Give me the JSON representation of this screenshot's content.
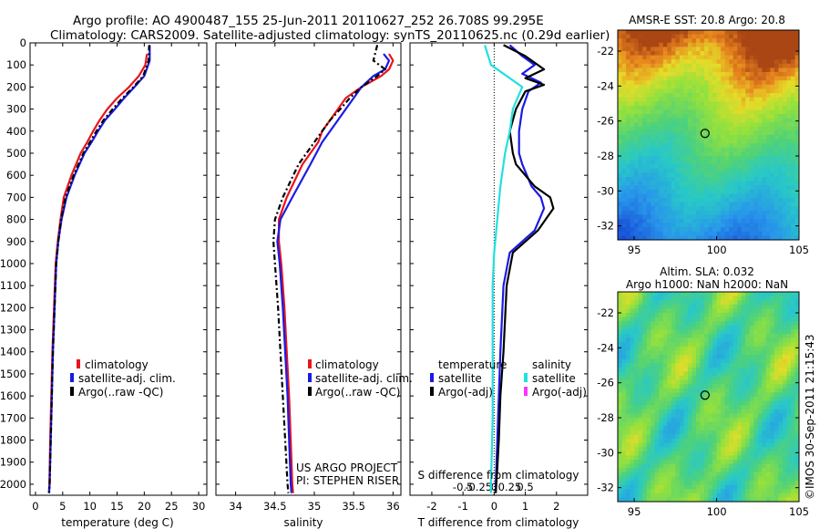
{
  "header": {
    "line1": "Argo profile: AO 4900487_155 25-Jun-2011 20110627_252 26.708S 99.295E",
    "line2": "Climatology: CARS2009. Satellite-adjusted climatology: synTS_20110625.nc (0.29d earlier)"
  },
  "credit": "©IMOS 30-Sep-2011 21:15:43",
  "project": {
    "line1": "US ARGO PROJECT",
    "line2": "PI: STEPHEN RISER"
  },
  "colors": {
    "climatology": "#e8141c",
    "satellite": "#1a1ae6",
    "argo": "#000000",
    "sal_sat": "#22e0e0",
    "sal_argo": "#ff33ff"
  },
  "chart_data": [
    {
      "type": "line",
      "xlabel": "temperature (deg C)",
      "xlim": [
        -1,
        31.5
      ],
      "xticks": [
        0,
        5,
        10,
        15,
        20,
        25,
        30
      ],
      "ylim": [
        2050,
        0
      ],
      "yticks": [
        0,
        100,
        200,
        300,
        400,
        500,
        600,
        700,
        800,
        900,
        1000,
        1100,
        1200,
        1300,
        1400,
        1500,
        1600,
        1700,
        1800,
        1900,
        2000
      ],
      "legend_location": "lower-center",
      "legend": [
        "climatology",
        "satellite-adj. clim.",
        "Argo(..raw -QC)"
      ],
      "series": [
        {
          "name": "climatology",
          "color": "climatology",
          "style": "solid",
          "x": [
            20.5,
            20.2,
            19.0,
            17.2,
            15.0,
            13.2,
            11.8,
            10.6,
            9.5,
            8.3,
            6.6,
            5.2,
            4.6,
            4.1,
            3.7,
            3.4,
            3.1,
            2.9,
            2.7,
            2.55,
            2.45
          ],
          "y": [
            50,
            100,
            150,
            200,
            250,
            300,
            350,
            400,
            450,
            500,
            600,
            700,
            800,
            900,
            1000,
            1200,
            1400,
            1600,
            1800,
            2000,
            2040
          ]
        },
        {
          "name": "satellite-adj. clim.",
          "color": "satellite",
          "style": "solid",
          "x": [
            21.0,
            21.0,
            20.0,
            18.2,
            16.3,
            14.6,
            12.8,
            11.5,
            10.3,
            9.0,
            7.2,
            5.7,
            4.8,
            4.2,
            3.8,
            3.5,
            3.2,
            3.0,
            2.8,
            2.6,
            2.5
          ],
          "y": [
            10,
            80,
            150,
            200,
            250,
            300,
            350,
            400,
            450,
            500,
            600,
            700,
            800,
            900,
            1000,
            1200,
            1400,
            1600,
            1800,
            2000,
            2040
          ]
        },
        {
          "name": "Argo(..raw -QC)",
          "color": "argo",
          "style": "dashdot",
          "x": [
            20.9,
            20.8,
            19.8,
            18.0,
            16.0,
            14.2,
            12.5,
            11.2,
            10.0,
            8.8,
            7.0,
            5.5,
            4.7,
            4.2,
            3.8,
            3.5,
            3.2,
            3.0,
            2.8,
            2.6,
            2.5
          ],
          "y": [
            10,
            80,
            150,
            200,
            250,
            300,
            350,
            400,
            450,
            500,
            600,
            700,
            800,
            900,
            1000,
            1200,
            1400,
            1600,
            1800,
            2000,
            2040
          ]
        }
      ]
    },
    {
      "type": "line",
      "xlabel": "salinity",
      "xlim": [
        33.75,
        36.1
      ],
      "xticks": [
        34,
        34.5,
        35,
        35.5,
        36
      ],
      "ylim": [
        2050,
        0
      ],
      "legend_location": "lower-center",
      "legend": [
        "climatology",
        "satellite-adj. clim.",
        "Argo(..raw -QC)"
      ],
      "series": [
        {
          "name": "climatology",
          "color": "climatology",
          "style": "solid",
          "x": [
            35.95,
            36.0,
            35.95,
            35.85,
            35.6,
            35.4,
            35.3,
            35.2,
            35.1,
            35.05,
            34.85,
            34.65,
            34.55,
            34.55,
            34.58,
            34.62,
            34.65,
            34.68,
            34.7,
            34.72,
            34.73
          ],
          "y": [
            50,
            80,
            120,
            150,
            200,
            250,
            300,
            350,
            400,
            450,
            550,
            700,
            800,
            900,
            1000,
            1200,
            1400,
            1600,
            1800,
            2000,
            2040
          ]
        },
        {
          "name": "satellite-adj. clim.",
          "color": "satellite",
          "style": "solid",
          "x": [
            35.88,
            35.95,
            35.9,
            35.75,
            35.6,
            35.5,
            35.4,
            35.3,
            35.2,
            35.1,
            34.95,
            34.72,
            34.57,
            34.53,
            34.56,
            34.6,
            34.63,
            34.66,
            34.68,
            34.7,
            34.71
          ],
          "y": [
            50,
            80,
            120,
            150,
            200,
            250,
            300,
            350,
            400,
            450,
            550,
            700,
            800,
            900,
            1000,
            1200,
            1400,
            1600,
            1800,
            2000,
            2040
          ]
        },
        {
          "name": "Argo(..raw -QC)",
          "color": "argo",
          "style": "dashdot",
          "x": [
            35.8,
            35.75,
            35.9,
            35.8,
            35.6,
            35.45,
            35.33,
            35.2,
            35.1,
            35.0,
            34.8,
            34.6,
            34.5,
            34.48,
            34.5,
            34.54,
            34.57,
            34.6,
            34.63,
            34.66,
            34.67
          ],
          "y": [
            10,
            80,
            120,
            150,
            200,
            250,
            300,
            350,
            400,
            450,
            550,
            700,
            800,
            900,
            1000,
            1200,
            1400,
            1600,
            1800,
            2000,
            2040
          ]
        }
      ]
    },
    {
      "type": "line",
      "xlabel": "T difference from climatology",
      "xlabel_top": "S difference from climatology",
      "xlim": [
        -2.7,
        3.0
      ],
      "xticks": [
        -2,
        -1,
        0,
        1,
        2
      ],
      "xticks_top": [
        {
          "v": -1.0,
          "label": "-0.5"
        },
        {
          "v": -0.5,
          "label": "-0.25"
        },
        {
          "v": 0,
          "label": "0"
        },
        {
          "v": 0.5,
          "label": "0.25"
        },
        {
          "v": 1.0,
          "label": "0.5"
        }
      ],
      "ylim": [
        2050,
        0
      ],
      "legend_location": "lower-center",
      "legend_temperature": {
        "title": "temperature",
        "entries": [
          "satellite",
          "Argo(-adj)"
        ]
      },
      "legend_salinity": {
        "title": "salinity",
        "entries": [
          "satellite",
          "Argo(-adj)"
        ]
      },
      "series": [
        {
          "name": "temperature satellite",
          "color": "satellite",
          "style": "solid",
          "x": [
            0.5,
            0.9,
            1.3,
            0.9,
            1.5,
            1.1,
            0.9,
            0.8,
            0.8,
            0.9,
            1.2,
            1.5,
            1.6,
            1.3,
            0.5,
            0.3,
            0.2,
            0.15,
            0.1,
            0.05,
            0.05
          ],
          "y": [
            10,
            60,
            100,
            140,
            180,
            220,
            300,
            400,
            500,
            550,
            650,
            700,
            750,
            850,
            950,
            1100,
            1400,
            1600,
            1800,
            2000,
            2040
          ]
        },
        {
          "name": "temperature Argo(-adj)",
          "color": "argo",
          "style": "solid",
          "x": [
            0.3,
            1.0,
            1.6,
            1.0,
            1.6,
            1.0,
            0.7,
            0.5,
            0.6,
            0.7,
            1.3,
            1.8,
            1.9,
            1.4,
            0.6,
            0.4,
            0.3,
            0.2,
            0.15,
            0.1,
            0.05
          ],
          "y": [
            10,
            60,
            120,
            160,
            190,
            220,
            300,
            400,
            500,
            550,
            650,
            700,
            750,
            850,
            950,
            1100,
            1400,
            1600,
            1800,
            1930,
            2040
          ]
        },
        {
          "name": "salinity satellite",
          "color": "sal_sat",
          "style": "solid",
          "x": [
            -0.3,
            -0.1,
            0.4,
            0.9,
            0.6,
            0.5,
            0.35,
            0.2,
            0.1,
            0.0,
            -0.05,
            -0.05,
            -0.05,
            -0.1,
            -0.1
          ],
          "y": [
            10,
            100,
            150,
            200,
            300,
            400,
            500,
            650,
            800,
            950,
            1100,
            1400,
            1700,
            2000,
            2040
          ]
        }
      ]
    },
    {
      "type": "heatmap",
      "title": "AMSR-E SST: 20.8 Argo: 20.8",
      "xlim": [
        94,
        105
      ],
      "xticks": [
        95,
        100,
        105
      ],
      "ylim": [
        -32.8,
        -20.8
      ],
      "yticks": [
        -22,
        -24,
        -26,
        -28,
        -30,
        -32
      ],
      "marker": {
        "lon": 99.295,
        "lat": -26.708
      }
    },
    {
      "type": "heatmap",
      "title": "Altim. SLA: 0.032",
      "subtitle": "Argo h1000: NaN h2000: NaN",
      "xlim": [
        94,
        105
      ],
      "xticks": [
        95,
        100,
        105
      ],
      "ylim": [
        -32.8,
        -20.8
      ],
      "yticks": [
        -22,
        -24,
        -26,
        -28,
        -30,
        -32
      ],
      "marker": {
        "lon": 99.295,
        "lat": -26.708
      }
    }
  ]
}
